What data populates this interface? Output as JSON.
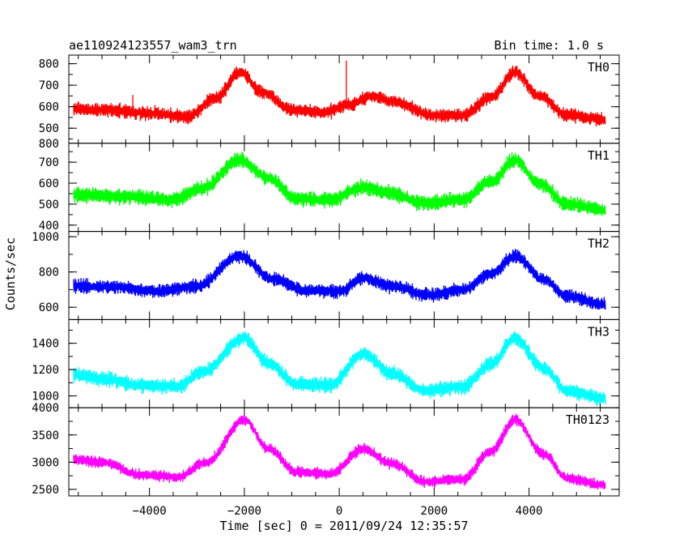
{
  "header": {
    "source_label": "ae110924123557_wam3_trn",
    "bin_label": "Bin time: 1.0 s"
  },
  "chart_data": {
    "type": "line",
    "title": "ae110924123557_wam3_trn",
    "subtitle": "Bin time: 1.0 s",
    "xlabel": "Time [sec] 0 = 2011/09/24 12:35:57",
    "ylabel": "Counts/sec",
    "xlim": [
      -5700,
      5900
    ],
    "x_ticks": [
      -4000,
      -2000,
      0,
      2000,
      4000
    ],
    "x_tick_labels": [
      "−4000",
      "−2000",
      "0",
      "2000",
      "4000"
    ],
    "panels": [
      {
        "name": "TH0",
        "color": "#ff0000",
        "ylim": [
          430,
          840
        ],
        "y_ticks": [
          500,
          600,
          700,
          800
        ],
        "y_tick_labels": [
          "500",
          "600",
          "700",
          "800"
        ],
        "bottom_label": "800",
        "profile": [
          [
            -5600,
            590
          ],
          [
            -5000,
            585
          ],
          [
            -4000,
            570
          ],
          [
            -3200,
            555
          ],
          [
            -2600,
            640
          ],
          [
            -2100,
            760
          ],
          [
            -1600,
            665
          ],
          [
            -1000,
            585
          ],
          [
            -300,
            575
          ],
          [
            200,
            610
          ],
          [
            700,
            650
          ],
          [
            1100,
            625
          ],
          [
            2000,
            560
          ],
          [
            2600,
            560
          ],
          [
            3200,
            645
          ],
          [
            3700,
            760
          ],
          [
            4200,
            650
          ],
          [
            4800,
            560
          ],
          [
            5600,
            540
          ]
        ],
        "noise": 40,
        "spikes": [
          [
            150,
            815
          ],
          [
            -4350,
            655
          ]
        ]
      },
      {
        "name": "TH1",
        "color": "#00ff00",
        "ylim": [
          370,
          790
        ],
        "y_ticks": [
          400,
          500,
          600,
          700
        ],
        "y_tick_labels": [
          "400",
          "500",
          "600",
          "700"
        ],
        "profile": [
          [
            -5600,
            545
          ],
          [
            -4500,
            535
          ],
          [
            -3500,
            520
          ],
          [
            -2900,
            575
          ],
          [
            -2100,
            710
          ],
          [
            -1500,
            625
          ],
          [
            -900,
            525
          ],
          [
            -200,
            520
          ],
          [
            500,
            580
          ],
          [
            1000,
            555
          ],
          [
            1800,
            505
          ],
          [
            2600,
            520
          ],
          [
            3200,
            610
          ],
          [
            3700,
            710
          ],
          [
            4200,
            600
          ],
          [
            4800,
            500
          ],
          [
            5600,
            470
          ]
        ],
        "noise": 45,
        "spikes": []
      },
      {
        "name": "TH2",
        "color": "#0000ff",
        "ylim": [
          530,
          1030
        ],
        "y_ticks": [
          600,
          800,
          1000
        ],
        "y_tick_labels": [
          "600",
          "800",
          "1000"
        ],
        "profile": [
          [
            -5600,
            720
          ],
          [
            -4800,
            715
          ],
          [
            -3800,
            690
          ],
          [
            -3000,
            720
          ],
          [
            -2100,
            890
          ],
          [
            -1400,
            760
          ],
          [
            -700,
            695
          ],
          [
            0,
            690
          ],
          [
            500,
            765
          ],
          [
            1100,
            720
          ],
          [
            1900,
            670
          ],
          [
            2600,
            700
          ],
          [
            3200,
            790
          ],
          [
            3700,
            890
          ],
          [
            4300,
            760
          ],
          [
            4800,
            660
          ],
          [
            5600,
            615
          ]
        ],
        "noise": 48,
        "spikes": []
      },
      {
        "name": "TH3",
        "color": "#00ffff",
        "ylim": [
          910,
          1580
        ],
        "y_ticks": [
          1000,
          1200,
          1400
        ],
        "y_tick_labels": [
          "1000",
          "1200",
          "1400"
        ],
        "profile": [
          [
            -5600,
            1160
          ],
          [
            -5000,
            1130
          ],
          [
            -4200,
            1080
          ],
          [
            -3400,
            1070
          ],
          [
            -2900,
            1180
          ],
          [
            -2000,
            1440
          ],
          [
            -1500,
            1250
          ],
          [
            -900,
            1090
          ],
          [
            -200,
            1080
          ],
          [
            500,
            1320
          ],
          [
            1100,
            1170
          ],
          [
            1800,
            1040
          ],
          [
            2600,
            1070
          ],
          [
            3200,
            1240
          ],
          [
            3700,
            1440
          ],
          [
            4300,
            1210
          ],
          [
            4800,
            1040
          ],
          [
            5600,
            980
          ]
        ],
        "noise": 70,
        "spikes": []
      },
      {
        "name": "TH0123",
        "color": "#ff00ff",
        "ylim": [
          2380,
          4000
        ],
        "y_ticks": [
          2500,
          3000,
          3500
        ],
        "y_tick_labels": [
          "2500",
          "3000",
          "3500"
        ],
        "top_label": "4000",
        "profile": [
          [
            -5600,
            3050
          ],
          [
            -5000,
            3000
          ],
          [
            -4200,
            2770
          ],
          [
            -3400,
            2730
          ],
          [
            -2800,
            3000
          ],
          [
            -2000,
            3780
          ],
          [
            -1500,
            3250
          ],
          [
            -900,
            2820
          ],
          [
            -200,
            2780
          ],
          [
            500,
            3240
          ],
          [
            1100,
            2980
          ],
          [
            1800,
            2640
          ],
          [
            2600,
            2690
          ],
          [
            3200,
            3200
          ],
          [
            3700,
            3780
          ],
          [
            4300,
            3150
          ],
          [
            4800,
            2700
          ],
          [
            5600,
            2570
          ]
        ],
        "noise": 130,
        "spikes": []
      }
    ]
  }
}
